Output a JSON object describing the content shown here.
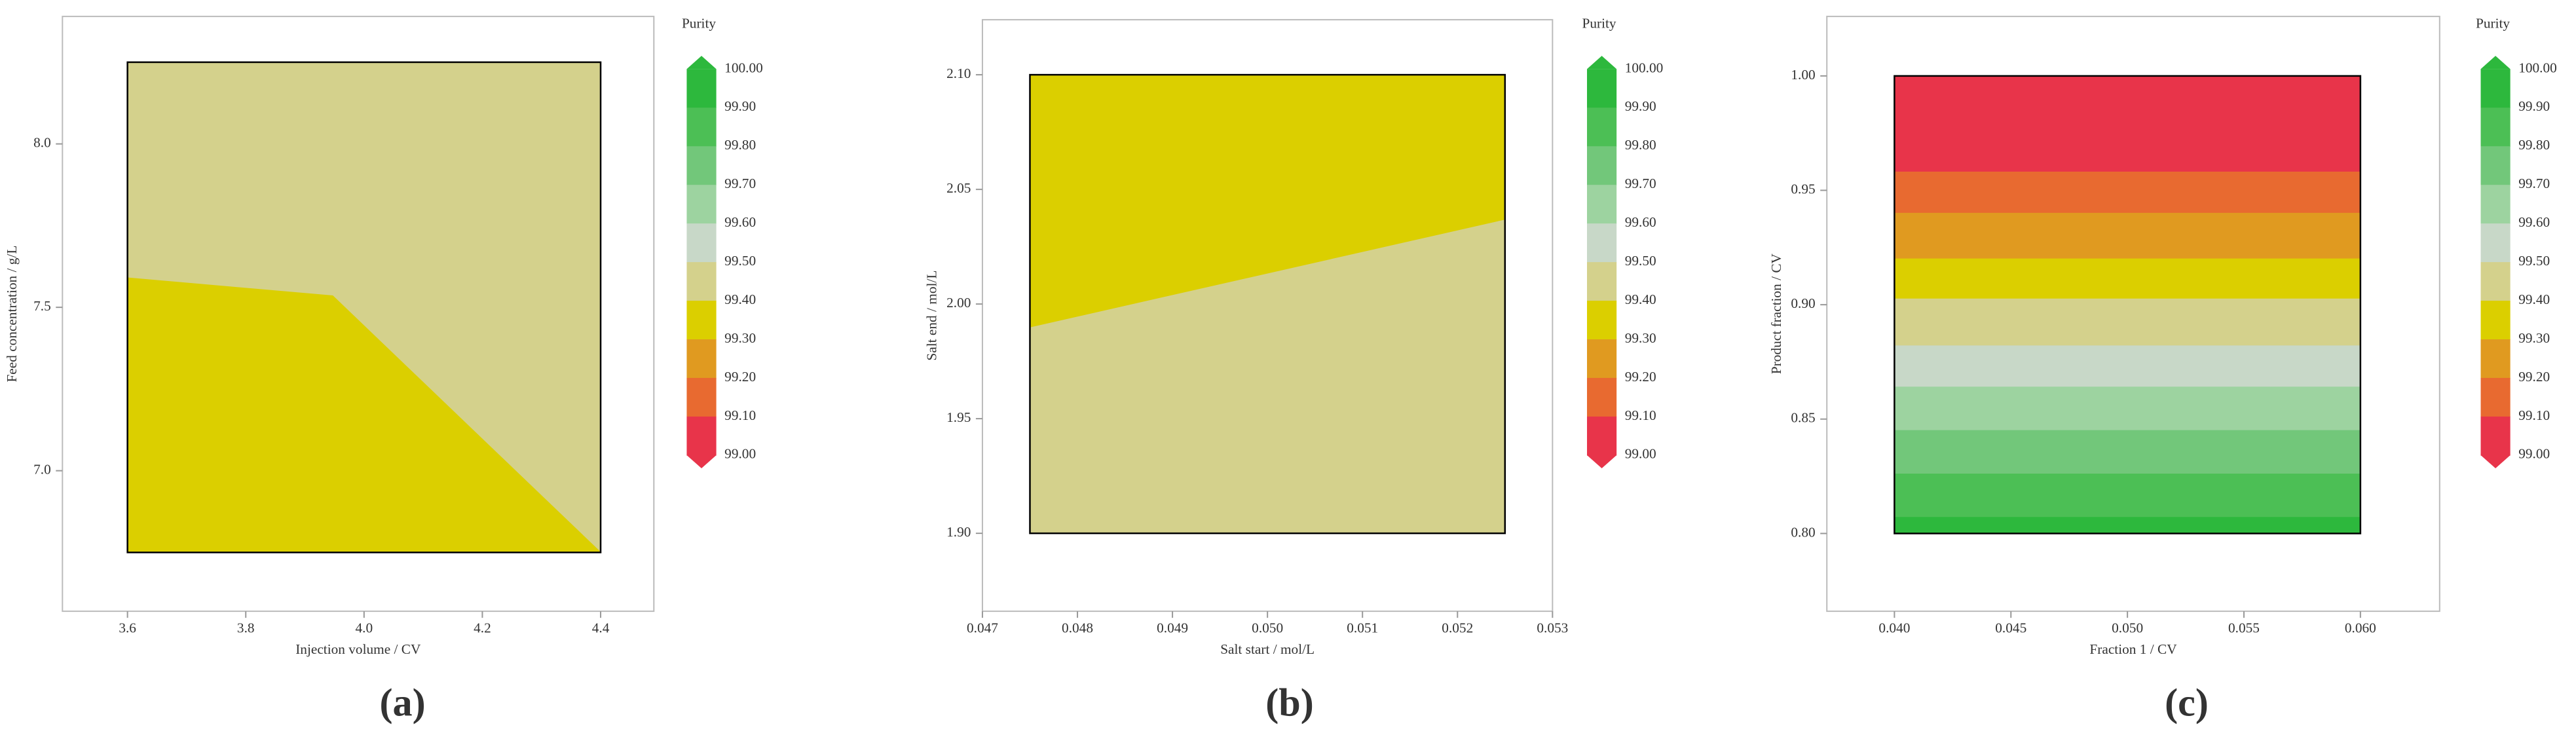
{
  "chart_data": [
    {
      "type": "contour",
      "xlabel": "Injection volume / CV",
      "ylabel": "Feed concentration / g/L",
      "panel_label": "(a)",
      "xlim": [
        3.49,
        4.49
      ],
      "ylim": [
        6.57,
        8.39
      ],
      "xticks": [
        3.6,
        3.8,
        {
          "value": 4,
          "label": "4.0"
        },
        4.2,
        4.4
      ],
      "yticks": [
        {
          "value": 7,
          "label": "7.0"
        },
        7.5,
        {
          "value": 8,
          "label": "8.0"
        }
      ],
      "regions": [
        {
          "color": "#d4d18c",
          "x": [
            3.6,
            4.4,
            4.4,
            3.6
          ],
          "y": [
            8.25,
            8.25,
            6.75,
            6.75
          ]
        },
        {
          "color": "#dbcf00",
          "x": [
            3.6,
            3.6,
            3.947,
            4.4
          ],
          "y": [
            6.75,
            7.59,
            7.535,
            6.75
          ]
        }
      ],
      "legend_title": "Purity",
      "levels": [
        {
          "value": 100,
          "label": "100.00"
        },
        {
          "value": 99.9,
          "label": "99.90"
        },
        {
          "value": 99.8,
          "label": "99.80"
        },
        {
          "value": 99.7,
          "label": "99.70"
        },
        {
          "value": 99.6,
          "label": "99.60"
        },
        {
          "value": 99.5,
          "label": "99.50"
        },
        {
          "value": 99.4,
          "label": "99.40"
        },
        {
          "value": 99.3,
          "label": "99.30"
        },
        {
          "value": 99.2,
          "label": "99.20"
        },
        {
          "value": 99.1,
          "label": "99.10"
        },
        {
          "value": 99,
          "label": "99.00"
        }
      ],
      "level_colors": [
        "#2db83d",
        "#4cbf55",
        "#72c77a",
        "#9dd3a0",
        "#c8d8c8",
        "#d4d18c",
        "#dbcf00",
        "#e09a20",
        "#e86a30",
        "#e8344a"
      ]
    },
    {
      "type": "contour",
      "xlabel": "Salt start / mol/L",
      "ylabel": "Salt end / mol/L",
      "panel_label": "(b)",
      "xlim": [
        0.047,
        0.053
      ],
      "ylim": [
        1.866,
        2.124
      ],
      "xticks": [
        0.047,
        0.048,
        0.049,
        {
          "value": 0.05,
          "label": "0.050"
        },
        0.051,
        0.052,
        0.053
      ],
      "yticks": [
        {
          "value": 1.9,
          "label": "1.90"
        },
        1.95,
        {
          "value": 2,
          "label": "2.00"
        },
        2.05,
        {
          "value": 2.1,
          "label": "2.10"
        }
      ],
      "regions": [
        {
          "color": "#d4d18c",
          "x": [
            0.0475,
            0.0525,
            0.0525,
            0.0475
          ],
          "y": [
            2.1,
            2.1,
            1.9,
            1.9
          ]
        },
        {
          "color": "#dbcf00",
          "x": [
            0.0475,
            0.0525,
            0.0525,
            0.0475
          ],
          "y": [
            1.99,
            2.037,
            2.1,
            2.1
          ]
        }
      ],
      "legend_title": "Purity",
      "levels": [
        {
          "value": 100,
          "label": "100.00"
        },
        {
          "value": 99.9,
          "label": "99.90"
        },
        {
          "value": 99.8,
          "label": "99.80"
        },
        {
          "value": 99.7,
          "label": "99.70"
        },
        {
          "value": 99.6,
          "label": "99.60"
        },
        {
          "value": 99.5,
          "label": "99.50"
        },
        {
          "value": 99.4,
          "label": "99.40"
        },
        {
          "value": 99.3,
          "label": "99.30"
        },
        {
          "value": 99.2,
          "label": "99.20"
        },
        {
          "value": 99.1,
          "label": "99.10"
        },
        {
          "value": 99,
          "label": "99.00"
        }
      ],
      "level_colors": [
        "#2db83d",
        "#4cbf55",
        "#72c77a",
        "#9dd3a0",
        "#c8d8c8",
        "#d4d18c",
        "#dbcf00",
        "#e09a20",
        "#e86a30",
        "#e8344a"
      ]
    },
    {
      "type": "contour",
      "xlabel": "Fraction 1 / CV",
      "ylabel": "Product fraction / CV",
      "panel_label": "(c)",
      "xlim": [
        0.0371,
        0.0634
      ],
      "ylim": [
        0.766,
        1.026
      ],
      "xticks": [
        {
          "value": 0.04,
          "label": "0.040"
        },
        0.045,
        {
          "value": 0.05,
          "label": "0.050"
        },
        0.055,
        {
          "value": 0.06,
          "label": "0.060"
        }
      ],
      "yticks": [
        {
          "value": 0.8,
          "label": "0.80"
        },
        0.85,
        {
          "value": 0.9,
          "label": "0.90"
        },
        0.95,
        {
          "value": 1,
          "label": "1.00"
        }
      ],
      "regions": [
        {
          "color": "#e8344a",
          "x": [
            0.04,
            0.06,
            0.06,
            0.04
          ],
          "y": [
            1,
            1,
            0.958,
            0.958
          ]
        },
        {
          "color": "#e86a30",
          "x": [
            0.04,
            0.06,
            0.06,
            0.04
          ],
          "y": [
            0.958,
            0.958,
            0.94,
            0.94
          ]
        },
        {
          "color": "#e09a20",
          "x": [
            0.04,
            0.06,
            0.06,
            0.04
          ],
          "y": [
            0.94,
            0.94,
            0.92,
            0.92
          ]
        },
        {
          "color": "#dbcf00",
          "x": [
            0.04,
            0.06,
            0.06,
            0.04
          ],
          "y": [
            0.92,
            0.92,
            0.9025,
            0.9025
          ]
        },
        {
          "color": "#d4d18c",
          "x": [
            0.04,
            0.06,
            0.06,
            0.04
          ],
          "y": [
            0.9025,
            0.9025,
            0.882,
            0.882
          ]
        },
        {
          "color": "#c8d8c8",
          "x": [
            0.04,
            0.06,
            0.06,
            0.04
          ],
          "y": [
            0.882,
            0.882,
            0.864,
            0.864
          ]
        },
        {
          "color": "#9dd3a0",
          "x": [
            0.04,
            0.06,
            0.06,
            0.04
          ],
          "y": [
            0.864,
            0.864,
            0.845,
            0.845
          ]
        },
        {
          "color": "#72c77a",
          "x": [
            0.04,
            0.06,
            0.06,
            0.04
          ],
          "y": [
            0.845,
            0.845,
            0.826,
            0.826
          ]
        },
        {
          "color": "#4cbf55",
          "x": [
            0.04,
            0.06,
            0.06,
            0.04
          ],
          "y": [
            0.826,
            0.826,
            0.807,
            0.807
          ]
        },
        {
          "color": "#2db83d",
          "x": [
            0.04,
            0.06,
            0.06,
            0.04
          ],
          "y": [
            0.807,
            0.807,
            0.8,
            0.8
          ]
        }
      ],
      "legend_title": "Purity",
      "levels": [
        {
          "value": 100,
          "label": "100.00"
        },
        {
          "value": 99.9,
          "label": "99.90"
        },
        {
          "value": 99.8,
          "label": "99.80"
        },
        {
          "value": 99.7,
          "label": "99.70"
        },
        {
          "value": 99.6,
          "label": "99.60"
        },
        {
          "value": 99.5,
          "label": "99.50"
        },
        {
          "value": 99.4,
          "label": "99.40"
        },
        {
          "value": 99.3,
          "label": "99.30"
        },
        {
          "value": 99.2,
          "label": "99.20"
        },
        {
          "value": 99.1,
          "label": "99.10"
        },
        {
          "value": 99,
          "label": "99.00"
        }
      ],
      "level_colors": [
        "#2db83d",
        "#4cbf55",
        "#72c77a",
        "#9dd3a0",
        "#c8d8c8",
        "#d4d18c",
        "#dbcf00",
        "#e09a20",
        "#e86a30",
        "#e8344a"
      ]
    }
  ]
}
